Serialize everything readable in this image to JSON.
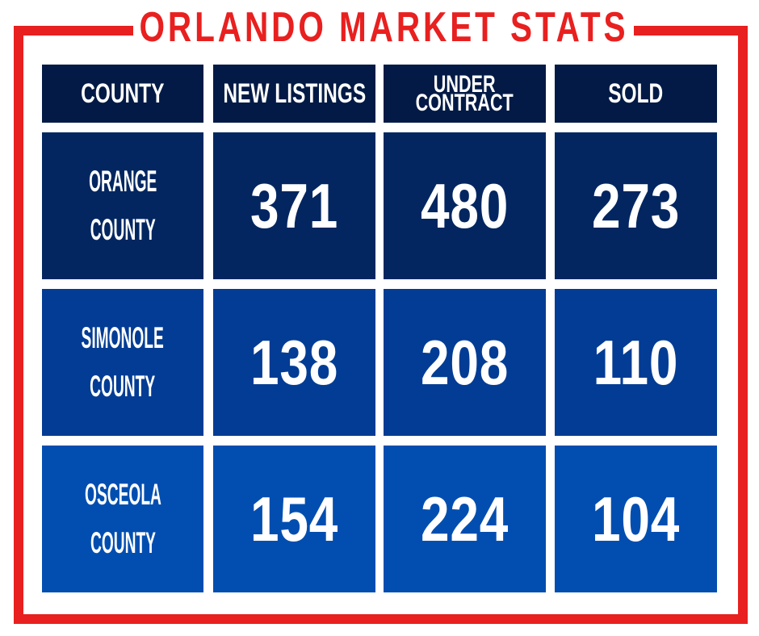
{
  "title": "ORLANDO MARKET STATS",
  "colors": {
    "frame": "#e8201f",
    "header_bg": "#021a45",
    "row_bg": [
      "#032660",
      "#023c94",
      "#024eb0"
    ],
    "text": "#ffffff"
  },
  "chart_data": {
    "type": "table",
    "title": "ORLANDO MARKET STATS",
    "columns": [
      "COUNTY",
      "NEW LISTINGS",
      "UNDER CONTRACT",
      "SOLD"
    ],
    "rows": [
      {
        "county": "ORANGE COUNTY",
        "new_listings": 371,
        "under_contract": 480,
        "sold": 273
      },
      {
        "county": "SIMONOLE COUNTY",
        "new_listings": 138,
        "under_contract": 208,
        "sold": 110
      },
      {
        "county": "OSCEOLA COUNTY",
        "new_listings": 154,
        "under_contract": 224,
        "sold": 104
      }
    ]
  },
  "header_lines": {
    "county": "COUNTY",
    "new_listings": "NEW LISTINGS",
    "under_line1": "UNDER",
    "under_line2": "CONTRACT",
    "sold": "SOLD"
  },
  "county_lines": [
    [
      "ORANGE",
      "COUNTY"
    ],
    [
      "SIMONOLE",
      "COUNTY"
    ],
    [
      "OSCEOLA",
      "COUNTY"
    ]
  ]
}
